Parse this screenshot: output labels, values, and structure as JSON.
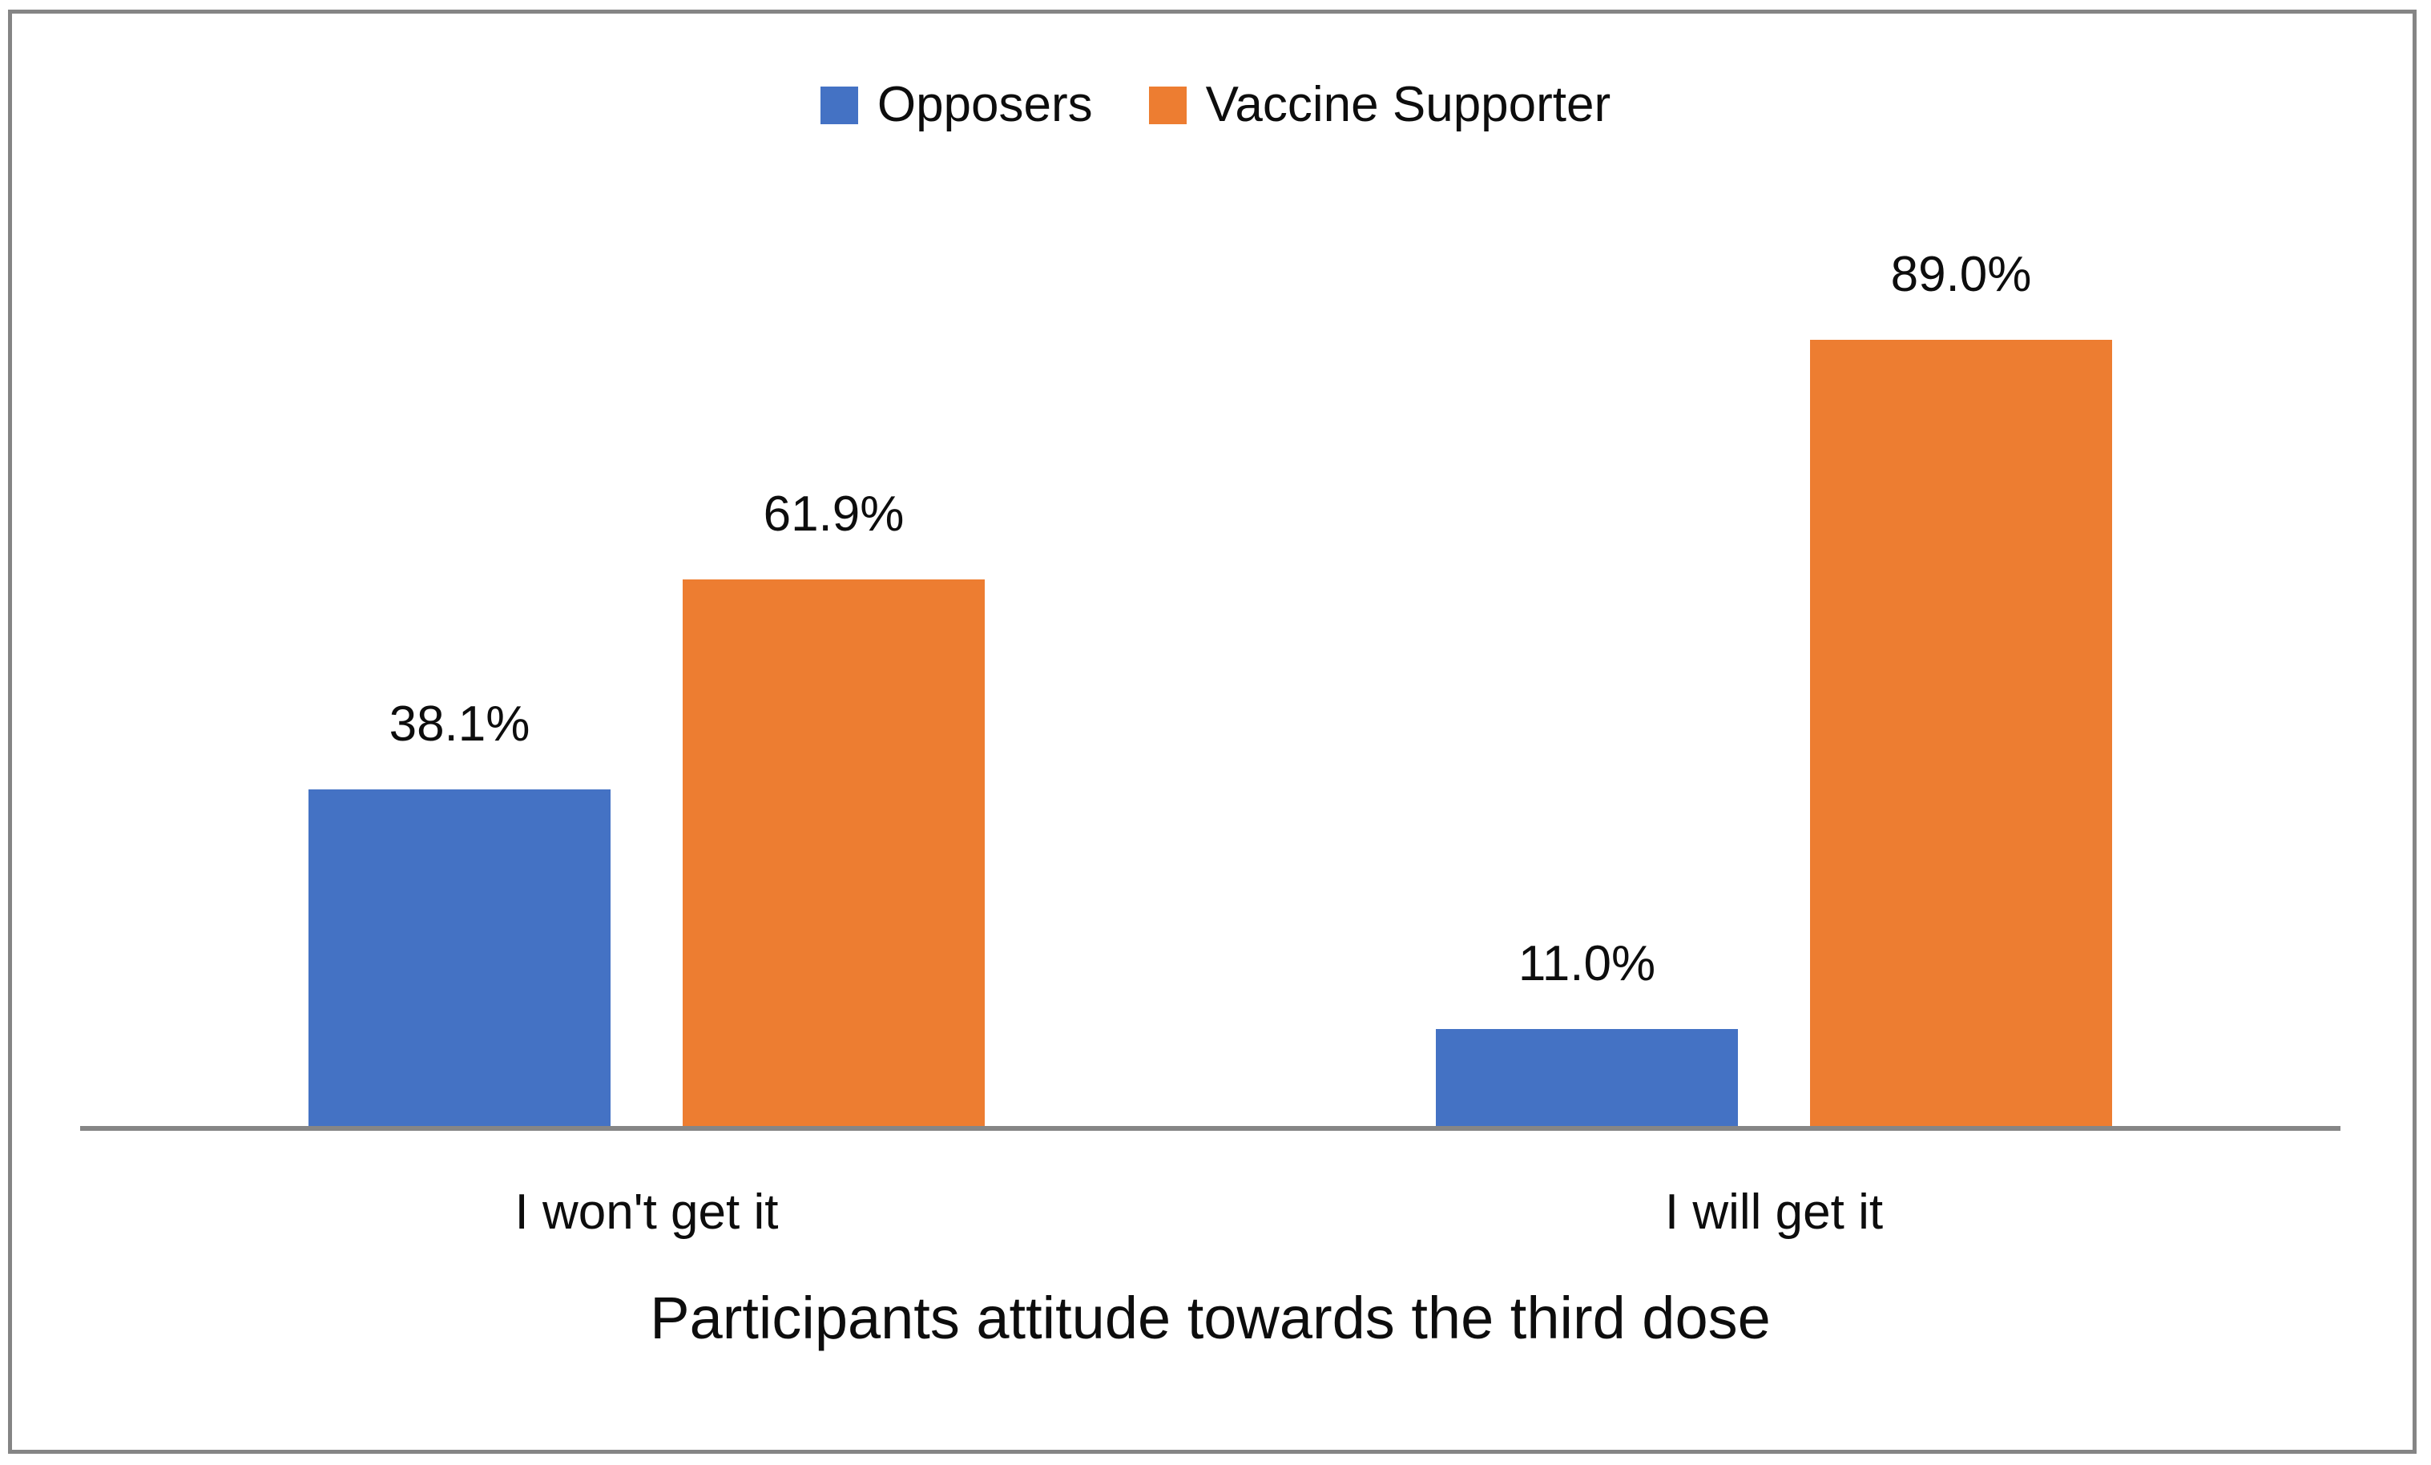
{
  "chart_data": {
    "type": "bar",
    "categories": [
      "I won't get it",
      "I will get it"
    ],
    "series": [
      {
        "name": "Opposers",
        "color": "#4472C4",
        "values": [
          38.1,
          11.0
        ]
      },
      {
        "name": "Vaccine Supporter",
        "color": "#ED7D31",
        "values": [
          61.9,
          89.0
        ]
      }
    ],
    "data_labels": [
      [
        "38.1%",
        "11.0%"
      ],
      [
        "61.9%",
        "89.0%"
      ]
    ],
    "title": "",
    "xlabel": "Participants attitude towards the third dose",
    "ylabel": "",
    "ylim": [
      0,
      100
    ],
    "grid": false,
    "legend_position": "top",
    "axis_line_color": "#868686",
    "border_color": "#858585",
    "text_color": "#0d0d0d"
  }
}
